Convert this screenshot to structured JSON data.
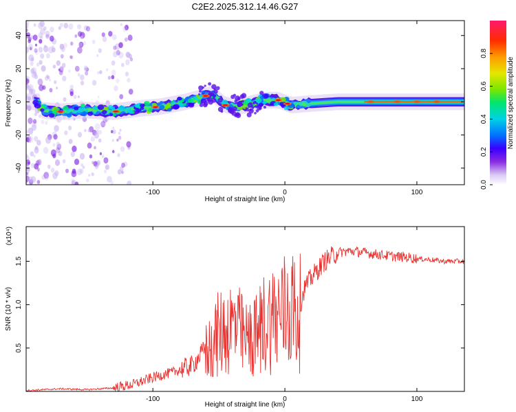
{
  "title": "C2E2.2025.312.14.46.G27",
  "chart_data": [
    {
      "type": "heatmap",
      "name": "spectrogram",
      "xlabel": "Height of straight line (km)",
      "ylabel": "Frequency (Hz)",
      "xlim": [
        -196,
        136
      ],
      "ylim": [
        -50,
        49
      ],
      "xticks": [
        -100,
        0,
        100
      ],
      "xtick_labels": [
        "-100",
        "0",
        "100"
      ],
      "yticks": [
        -40,
        -20,
        0,
        20,
        40
      ],
      "ytick_labels": [
        "-40",
        "-20",
        "0",
        "20",
        "40"
      ],
      "ridge": {
        "x": [
          -185,
          -170,
          -150,
          -130,
          -110,
          -95,
          -75,
          -62,
          -55,
          -45,
          -35,
          -25,
          -15,
          -5,
          5,
          20,
          40,
          60,
          80,
          100,
          120,
          135
        ],
        "freq": [
          -5,
          -6,
          -5,
          -6,
          -4,
          -3,
          0,
          3,
          5,
          -2,
          -3,
          -1,
          1,
          1,
          -2,
          -1,
          0,
          0,
          0,
          0,
          0,
          0
        ]
      },
      "colorbar": {
        "label": "Normalized spectral amplitude",
        "range": [
          0,
          1
        ],
        "ticks": [
          0.0,
          0.2,
          0.4,
          0.6,
          0.8
        ],
        "tick_labels": [
          "0.0",
          "0.2",
          "0.4",
          "0.6",
          "0.8"
        ]
      }
    },
    {
      "type": "line",
      "name": "snr",
      "xlabel": "Height of straight line (km)",
      "ylabel": "SNR (10 * v/v)",
      "scale_label": "(x10⁴)",
      "xlim": [
        -196,
        136
      ],
      "ylim": [
        0,
        1.9
      ],
      "xticks": [
        -100,
        0,
        100
      ],
      "xtick_labels": [
        "-100",
        "0",
        "100"
      ],
      "yticks": [
        0.5,
        1.0,
        1.5
      ],
      "ytick_labels": [
        "0.5",
        "1.0",
        "1.5"
      ],
      "color": "#e8312e",
      "series": [
        {
          "name": "SNR",
          "x": [
            -196,
            -170,
            -150,
            -130,
            -115,
            -100,
            -85,
            -70,
            -60,
            -52,
            -45,
            -38,
            -30,
            -22,
            -15,
            -8,
            -2,
            5,
            10,
            15,
            22,
            30,
            40,
            50,
            60,
            70,
            80,
            90,
            100,
            110,
            120,
            136
          ],
          "y": [
            0.01,
            0.03,
            0.02,
            0.04,
            0.08,
            0.16,
            0.22,
            0.3,
            0.5,
            0.7,
            0.8,
            0.85,
            0.65,
            0.7,
            0.9,
            0.95,
            1.0,
            1.1,
            0.9,
            1.2,
            1.35,
            1.5,
            1.6,
            1.62,
            1.6,
            1.58,
            1.56,
            1.55,
            1.53,
            1.52,
            1.5,
            1.5
          ]
        }
      ]
    }
  ]
}
